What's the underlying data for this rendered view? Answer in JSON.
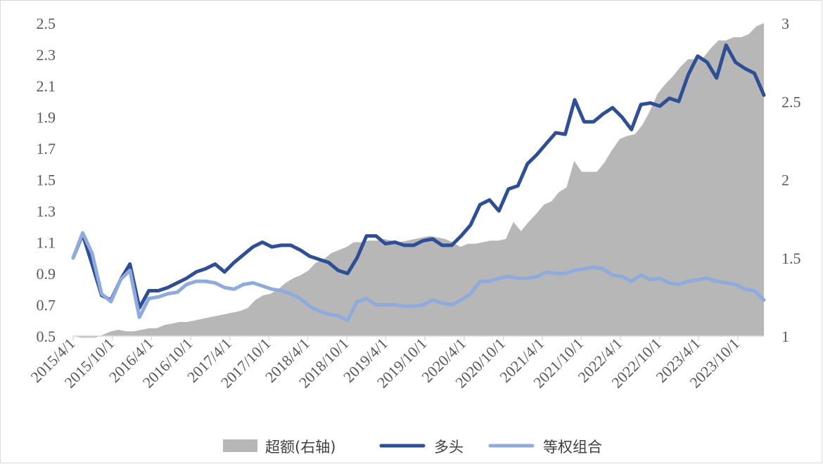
{
  "chart_data": {
    "type": "line",
    "left_axis": {
      "ylim": [
        0.5,
        2.5
      ],
      "ticks": [
        "0.5",
        "0.7",
        "0.9",
        "1.1",
        "1.3",
        "1.5",
        "1.7",
        "1.9",
        "2.1",
        "2.3",
        "2.5"
      ]
    },
    "right_axis": {
      "ylim": [
        1,
        3
      ],
      "ticks": [
        "1",
        "1.5",
        "2",
        "2.5",
        "3"
      ]
    },
    "x_tick_labels": [
      "2015/4/1",
      "2015/10/1",
      "2016/4/1",
      "2016/10/1",
      "2017/4/1",
      "2017/10/1",
      "2018/4/1",
      "2018/10/1",
      "2019/4/1",
      "2019/10/1",
      "2020/4/1",
      "2020/10/1",
      "2021/4/1",
      "2021/10/1",
      "2022/4/1",
      "2022/10/1",
      "2023/4/1",
      "2023/10/1"
    ],
    "x_start": "2015-04-01",
    "x_end": "2024-02-01",
    "colors": {
      "excess": "#b7b7b7",
      "long": "#2e4f95",
      "equal": "#8faadc",
      "axis": "#d9d9d9"
    },
    "series": [
      {
        "name": "超额(右轴)",
        "type": "area",
        "axis": "right",
        "values": [
          1.0,
          0.99,
          0.99,
          0.99,
          1.01,
          1.03,
          1.04,
          1.03,
          1.03,
          1.04,
          1.05,
          1.05,
          1.07,
          1.08,
          1.09,
          1.09,
          1.1,
          1.11,
          1.12,
          1.13,
          1.14,
          1.15,
          1.16,
          1.18,
          1.23,
          1.26,
          1.27,
          1.3,
          1.34,
          1.37,
          1.39,
          1.42,
          1.47,
          1.49,
          1.53,
          1.55,
          1.57,
          1.6,
          1.6,
          1.61,
          1.61,
          1.62,
          1.61,
          1.6,
          1.61,
          1.62,
          1.63,
          1.64,
          1.63,
          1.62,
          1.6,
          1.57,
          1.59,
          1.59,
          1.6,
          1.61,
          1.61,
          1.62,
          1.73,
          1.67,
          1.73,
          1.78,
          1.84,
          1.86,
          1.92,
          1.95,
          2.12,
          2.05,
          2.05,
          2.05,
          2.11,
          2.19,
          2.26,
          2.28,
          2.29,
          2.35,
          2.44,
          2.55,
          2.61,
          2.66,
          2.72,
          2.77,
          2.77,
          2.78,
          2.84,
          2.89,
          2.89,
          2.91,
          2.91,
          2.93,
          2.98,
          3.0
        ]
      },
      {
        "name": "多头",
        "type": "line",
        "axis": "left",
        "values": [
          1.0,
          1.15,
          0.96,
          0.76,
          0.73,
          0.86,
          0.96,
          0.68,
          0.79,
          0.79,
          0.81,
          0.84,
          0.87,
          0.91,
          0.93,
          0.96,
          0.91,
          0.97,
          1.02,
          1.07,
          1.1,
          1.07,
          1.08,
          1.08,
          1.05,
          1.01,
          0.99,
          0.97,
          0.92,
          0.9,
          1.0,
          1.14,
          1.14,
          1.09,
          1.1,
          1.08,
          1.08,
          1.11,
          1.12,
          1.08,
          1.08,
          1.14,
          1.21,
          1.34,
          1.37,
          1.3,
          1.44,
          1.46,
          1.6,
          1.66,
          1.73,
          1.8,
          1.79,
          2.01,
          1.87,
          1.87,
          1.92,
          1.96,
          1.9,
          1.82,
          1.98,
          1.99,
          1.97,
          2.02,
          2.0,
          2.17,
          2.29,
          2.25,
          2.15,
          2.36,
          2.25,
          2.21,
          2.18,
          2.04
        ]
      },
      {
        "name": "等权组合",
        "type": "line",
        "axis": "left",
        "values": [
          1.0,
          1.16,
          1.03,
          0.77,
          0.72,
          0.86,
          0.92,
          0.62,
          0.74,
          0.75,
          0.77,
          0.78,
          0.83,
          0.85,
          0.85,
          0.84,
          0.81,
          0.8,
          0.83,
          0.84,
          0.82,
          0.8,
          0.79,
          0.77,
          0.74,
          0.69,
          0.66,
          0.64,
          0.63,
          0.6,
          0.72,
          0.74,
          0.7,
          0.7,
          0.7,
          0.69,
          0.69,
          0.7,
          0.73,
          0.71,
          0.7,
          0.73,
          0.77,
          0.85,
          0.85,
          0.87,
          0.88,
          0.87,
          0.87,
          0.88,
          0.91,
          0.9,
          0.9,
          0.92,
          0.93,
          0.94,
          0.93,
          0.89,
          0.88,
          0.85,
          0.89,
          0.86,
          0.87,
          0.84,
          0.83,
          0.85,
          0.86,
          0.87,
          0.85,
          0.84,
          0.83,
          0.8,
          0.79,
          0.73
        ]
      }
    ],
    "legend_position": "bottom"
  }
}
